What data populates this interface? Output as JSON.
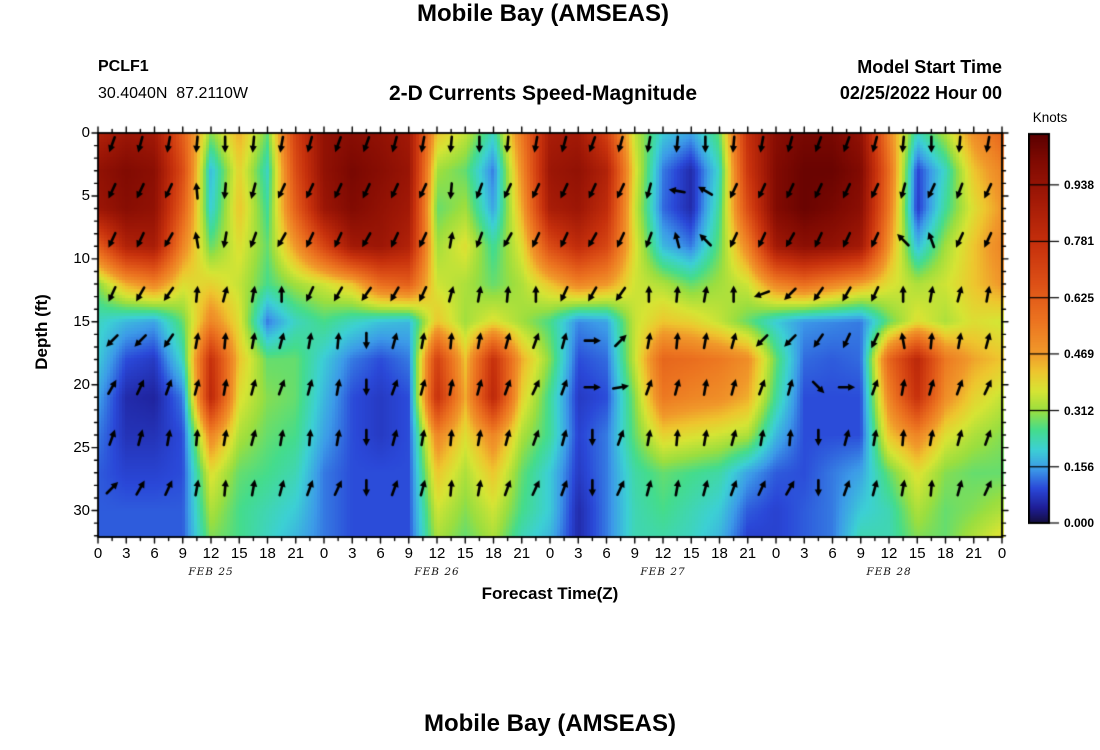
{
  "header": {
    "title": "Mobile Bay (AMSEAS)",
    "station_id": "PCLF1",
    "coordinates": "30.4040N  87.2110W",
    "subtitle": "2-D Currents Speed-Magnitude",
    "model_start_label": "Model Start Time",
    "model_start_value": "02/25/2022 Hour 00"
  },
  "footer": {
    "next_plot_title": "Mobile Bay (AMSEAS)"
  },
  "plot": {
    "xlabel": "Forecast Time(Z)",
    "ylabel": "Depth (ft)",
    "x_hour_labels": [
      "0",
      "3",
      "6",
      "9",
      "12",
      "15",
      "18",
      "21",
      "0",
      "3",
      "6",
      "9",
      "12",
      "15",
      "18",
      "21",
      "0",
      "3",
      "6",
      "9",
      "12",
      "15",
      "18",
      "21",
      "0",
      "3",
      "6",
      "9",
      "12",
      "15",
      "18",
      "21",
      "0"
    ],
    "day_labels": [
      "FEB 25",
      "FEB 26",
      "FEB 27",
      "FEB 28"
    ],
    "y_tick_values": [
      0,
      5,
      10,
      15,
      20,
      25,
      30
    ],
    "y_tick_labels": [
      "0",
      "5",
      "10",
      "15",
      "20",
      "25",
      "30"
    ]
  },
  "colorbar": {
    "title": "Knots",
    "tick_labels": [
      "0.938",
      "0.781",
      "0.625",
      "0.469",
      "0.312",
      "0.156",
      "0.000"
    ],
    "tick_values": [
      0.938,
      0.781,
      0.625,
      0.469,
      0.312,
      0.156,
      0.0
    ],
    "vmax": 1.079
  },
  "chart_data": {
    "type": "heatmap",
    "title": "Mobile Bay (AMSEAS)",
    "subtitle": "2-D Currents Speed-Magnitude",
    "station": "PCLF1",
    "units": "knots",
    "xlabel": "Forecast Time(Z)",
    "ylabel": "Depth (ft)",
    "x_hours": [
      0,
      3,
      6,
      9,
      12,
      15,
      18,
      21,
      24,
      27,
      30,
      33,
      36,
      39,
      42,
      45,
      48,
      51,
      54,
      57,
      60,
      63,
      66,
      69,
      72,
      75,
      78,
      81,
      84,
      87,
      90,
      93,
      96
    ],
    "depths_ft": [
      0,
      3,
      6,
      9,
      12,
      15,
      18,
      21,
      24,
      27,
      30,
      32
    ],
    "depth_range": [
      0,
      32.1
    ],
    "colormap": "jet",
    "speed_knots": [
      [
        0.85,
        0.92,
        0.9,
        0.62,
        0.3,
        0.45,
        0.28,
        0.72,
        0.95,
        0.98,
        0.95,
        0.9,
        0.42,
        0.35,
        0.22,
        0.55,
        0.88,
        0.9,
        0.72,
        0.35,
        0.2,
        0.16,
        0.28,
        0.78,
        0.98,
        1.02,
        1.02,
        0.95,
        0.52,
        0.22,
        0.33,
        0.5,
        0.6
      ],
      [
        0.95,
        1.0,
        0.97,
        0.68,
        0.18,
        0.4,
        0.22,
        0.68,
        0.95,
        1.02,
        0.98,
        0.93,
        0.32,
        0.28,
        0.13,
        0.5,
        0.92,
        0.95,
        0.85,
        0.38,
        0.13,
        0.06,
        0.22,
        0.75,
        1.0,
        1.05,
        1.05,
        1.0,
        0.58,
        0.09,
        0.22,
        0.42,
        0.52
      ],
      [
        0.92,
        0.98,
        0.95,
        0.62,
        0.2,
        0.42,
        0.25,
        0.62,
        0.92,
        1.0,
        0.95,
        0.9,
        0.28,
        0.32,
        0.16,
        0.45,
        0.88,
        0.92,
        0.8,
        0.36,
        0.12,
        0.06,
        0.25,
        0.68,
        1.0,
        1.05,
        1.02,
        0.97,
        0.55,
        0.08,
        0.25,
        0.38,
        0.48
      ],
      [
        0.62,
        0.85,
        0.88,
        0.52,
        0.28,
        0.38,
        0.28,
        0.48,
        0.7,
        0.9,
        0.92,
        0.85,
        0.32,
        0.38,
        0.25,
        0.38,
        0.68,
        0.8,
        0.7,
        0.38,
        0.18,
        0.13,
        0.28,
        0.52,
        0.9,
        0.97,
        0.95,
        0.9,
        0.48,
        0.18,
        0.32,
        0.42,
        0.52
      ],
      [
        0.3,
        0.45,
        0.52,
        0.38,
        0.4,
        0.35,
        0.26,
        0.32,
        0.36,
        0.42,
        0.58,
        0.62,
        0.36,
        0.33,
        0.28,
        0.33,
        0.42,
        0.52,
        0.48,
        0.36,
        0.33,
        0.28,
        0.32,
        0.36,
        0.52,
        0.58,
        0.52,
        0.46,
        0.38,
        0.33,
        0.36,
        0.42,
        0.48
      ],
      [
        0.22,
        0.18,
        0.16,
        0.28,
        0.52,
        0.38,
        0.13,
        0.22,
        0.26,
        0.22,
        0.19,
        0.18,
        0.42,
        0.32,
        0.38,
        0.32,
        0.26,
        0.14,
        0.16,
        0.35,
        0.42,
        0.4,
        0.35,
        0.28,
        0.2,
        0.15,
        0.14,
        0.13,
        0.28,
        0.38,
        0.33,
        0.38,
        0.36
      ],
      [
        0.2,
        0.1,
        0.08,
        0.22,
        0.78,
        0.42,
        0.28,
        0.28,
        0.2,
        0.13,
        0.1,
        0.13,
        0.72,
        0.42,
        0.78,
        0.45,
        0.3,
        0.1,
        0.12,
        0.35,
        0.6,
        0.58,
        0.55,
        0.5,
        0.28,
        0.12,
        0.11,
        0.12,
        0.6,
        0.82,
        0.55,
        0.46,
        0.42
      ],
      [
        0.16,
        0.06,
        0.05,
        0.13,
        0.82,
        0.38,
        0.3,
        0.28,
        0.18,
        0.1,
        0.08,
        0.1,
        0.78,
        0.45,
        0.82,
        0.4,
        0.25,
        0.08,
        0.1,
        0.3,
        0.55,
        0.52,
        0.5,
        0.45,
        0.25,
        0.1,
        0.1,
        0.1,
        0.52,
        0.78,
        0.5,
        0.4,
        0.35
      ],
      [
        0.13,
        0.07,
        0.07,
        0.1,
        0.52,
        0.33,
        0.28,
        0.26,
        0.16,
        0.1,
        0.08,
        0.1,
        0.52,
        0.38,
        0.52,
        0.33,
        0.25,
        0.09,
        0.13,
        0.28,
        0.4,
        0.38,
        0.36,
        0.33,
        0.18,
        0.1,
        0.1,
        0.1,
        0.42,
        0.52,
        0.38,
        0.33,
        0.3
      ],
      [
        0.11,
        0.09,
        0.09,
        0.1,
        0.38,
        0.28,
        0.26,
        0.23,
        0.13,
        0.1,
        0.1,
        0.1,
        0.42,
        0.33,
        0.42,
        0.28,
        0.2,
        0.08,
        0.13,
        0.24,
        0.28,
        0.26,
        0.24,
        0.16,
        0.11,
        0.1,
        0.13,
        0.16,
        0.28,
        0.38,
        0.3,
        0.28,
        0.28
      ],
      [
        0.11,
        0.11,
        0.11,
        0.11,
        0.33,
        0.26,
        0.23,
        0.2,
        0.13,
        0.1,
        0.1,
        0.1,
        0.36,
        0.3,
        0.36,
        0.26,
        0.2,
        0.06,
        0.13,
        0.23,
        0.26,
        0.23,
        0.2,
        0.11,
        0.09,
        0.11,
        0.13,
        0.2,
        0.23,
        0.33,
        0.28,
        0.3,
        0.33
      ],
      [
        0.11,
        0.11,
        0.11,
        0.11,
        0.3,
        0.26,
        0.22,
        0.18,
        0.13,
        0.1,
        0.1,
        0.1,
        0.33,
        0.28,
        0.33,
        0.23,
        0.18,
        0.06,
        0.13,
        0.23,
        0.24,
        0.22,
        0.18,
        0.09,
        0.09,
        0.11,
        0.13,
        0.23,
        0.23,
        0.3,
        0.28,
        0.33,
        0.38
      ]
    ],
    "arrows": {
      "x_hours": [
        1.5,
        4.5,
        7.5,
        10.5,
        13.5,
        16.5,
        19.5,
        22.5,
        25.5,
        28.5,
        31.5,
        34.5,
        37.5,
        40.5,
        43.5,
        46.5,
        49.5,
        52.5,
        55.5,
        58.5,
        61.5,
        64.5,
        67.5,
        70.5,
        73.5,
        76.5,
        79.5,
        82.5,
        85.5,
        88.5,
        91.5,
        94.5
      ],
      "depths_ft": [
        0.9,
        4.6,
        8.5,
        12.8,
        16.5,
        20.2,
        24.2,
        28.2
      ],
      "bearing_deg": [
        [
          200,
          195,
          190,
          185,
          180,
          185,
          190,
          195,
          200,
          200,
          195,
          190,
          185,
          180,
          185,
          190,
          195,
          200,
          195,
          190,
          185,
          180,
          185,
          190,
          195,
          200,
          200,
          195,
          185,
          180,
          185,
          190
        ],
        [
          205,
          205,
          205,
          355,
          185,
          195,
          205,
          205,
          205,
          205,
          205,
          205,
          185,
          200,
          205,
          205,
          205,
          205,
          205,
          195,
          280,
          300,
          205,
          205,
          205,
          205,
          205,
          205,
          195,
          205,
          200,
          205
        ],
        [
          205,
          205,
          210,
          350,
          190,
          200,
          210,
          205,
          205,
          210,
          205,
          205,
          10,
          200,
          210,
          205,
          205,
          210,
          205,
          200,
          345,
          315,
          205,
          205,
          210,
          205,
          205,
          205,
          315,
          340,
          205,
          205
        ],
        [
          205,
          210,
          215,
          5,
          15,
          10,
          0,
          205,
          210,
          215,
          210,
          205,
          15,
          10,
          5,
          0,
          205,
          210,
          215,
          0,
          5,
          10,
          0,
          250,
          225,
          215,
          210,
          205,
          0,
          10,
          15,
          10
        ],
        [
          225,
          225,
          215,
          10,
          5,
          10,
          15,
          10,
          5,
          180,
          15,
          10,
          5,
          10,
          15,
          20,
          15,
          90,
          45,
          10,
          5,
          10,
          15,
          225,
          225,
          215,
          205,
          205,
          350,
          5,
          10,
          15
        ],
        [
          30,
          25,
          20,
          15,
          10,
          15,
          20,
          15,
          10,
          180,
          20,
          15,
          10,
          15,
          20,
          25,
          20,
          90,
          80,
          20,
          15,
          10,
          15,
          20,
          15,
          135,
          90,
          20,
          10,
          15,
          20,
          25
        ],
        [
          20,
          15,
          10,
          5,
          10,
          15,
          10,
          5,
          10,
          180,
          15,
          10,
          5,
          10,
          15,
          20,
          15,
          180,
          20,
          10,
          5,
          10,
          15,
          10,
          5,
          180,
          15,
          10,
          5,
          10,
          15,
          20
        ],
        [
          45,
          30,
          25,
          10,
          5,
          10,
          15,
          20,
          25,
          180,
          20,
          15,
          5,
          10,
          20,
          25,
          20,
          180,
          25,
          15,
          10,
          15,
          20,
          25,
          30,
          180,
          20,
          15,
          10,
          5,
          15,
          25
        ]
      ]
    },
    "colorbar_ticks_knots": [
      0.0,
      0.156,
      0.312,
      0.469,
      0.625,
      0.781,
      0.938
    ]
  }
}
